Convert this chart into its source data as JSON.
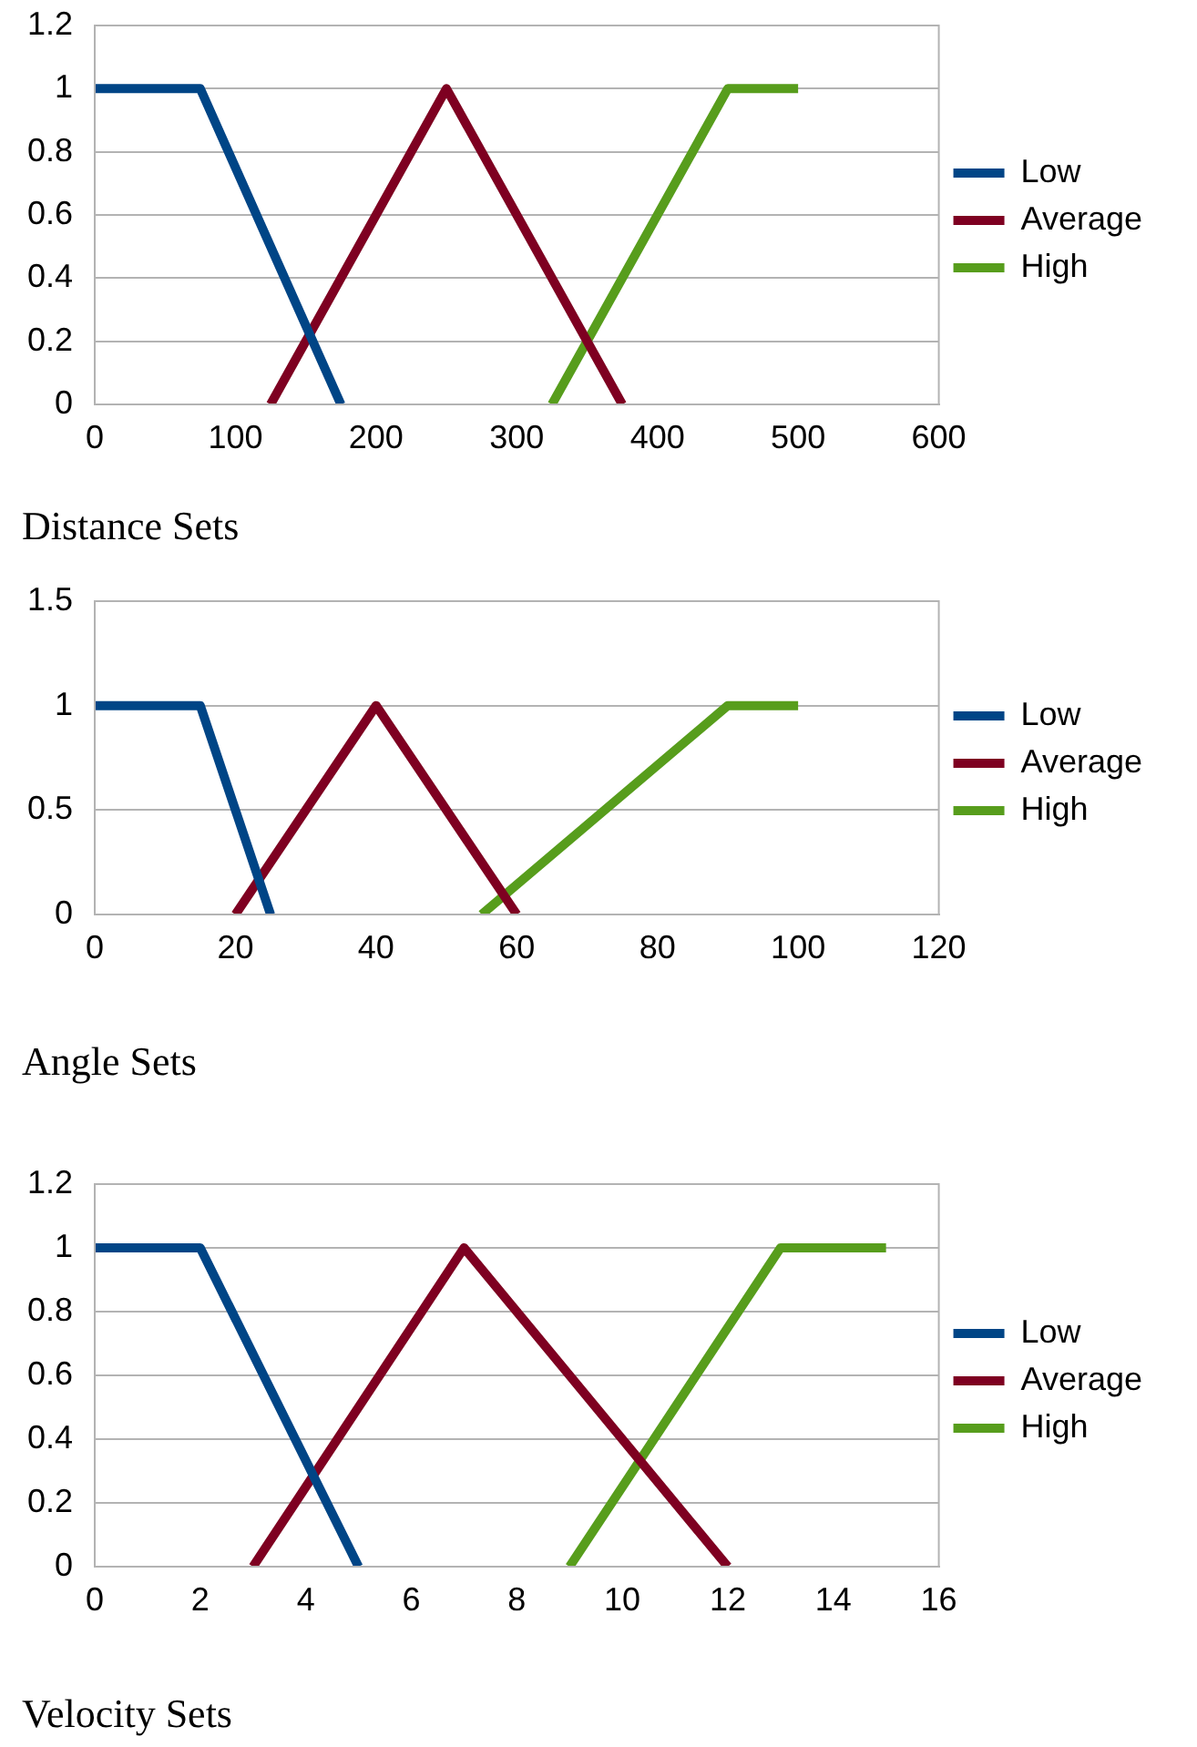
{
  "chart_data": [
    {
      "type": "line",
      "title": "Distance Sets",
      "xlim": [
        0,
        600
      ],
      "xticks": [
        0,
        100,
        200,
        300,
        400,
        500,
        600
      ],
      "ylim": [
        0,
        1.2
      ],
      "yticks": [
        0,
        0.2,
        0.4,
        0.6,
        0.8,
        1,
        1.2
      ],
      "grid": "y",
      "legend": "right",
      "marker": "none",
      "line_style": "solid",
      "series": [
        {
          "name": "Low",
          "color": "#004586",
          "x": [
            0,
            75,
            175
          ],
          "values": [
            1,
            1,
            0
          ]
        },
        {
          "name": "Average",
          "color": "#7e0021",
          "x": [
            125,
            250,
            375
          ],
          "values": [
            0,
            1,
            0
          ]
        },
        {
          "name": "High",
          "color": "#579d1c",
          "x": [
            325,
            450,
            500
          ],
          "values": [
            0,
            1,
            1
          ]
        }
      ]
    },
    {
      "type": "line",
      "title": "Angle Sets",
      "xlim": [
        0,
        120
      ],
      "xticks": [
        0,
        20,
        40,
        60,
        80,
        100,
        120
      ],
      "ylim": [
        0,
        1.5
      ],
      "yticks": [
        0,
        0.5,
        1,
        1.5
      ],
      "grid": "y",
      "legend": "right",
      "marker": "none",
      "line_style": "solid",
      "series": [
        {
          "name": "Low",
          "color": "#004586",
          "x": [
            0,
            15,
            25
          ],
          "values": [
            1,
            1,
            0
          ]
        },
        {
          "name": "Average",
          "color": "#7e0021",
          "x": [
            20,
            40,
            60
          ],
          "values": [
            0,
            1,
            0
          ]
        },
        {
          "name": "High",
          "color": "#579d1c",
          "x": [
            55,
            90,
            100
          ],
          "values": [
            0,
            1,
            1
          ]
        }
      ]
    },
    {
      "type": "line",
      "title": "Velocity Sets",
      "xlim": [
        0,
        16
      ],
      "xticks": [
        0,
        2,
        4,
        6,
        8,
        10,
        12,
        14,
        16
      ],
      "ylim": [
        0,
        1.2
      ],
      "yticks": [
        0,
        0.2,
        0.4,
        0.6,
        0.8,
        1,
        1.2
      ],
      "grid": "y",
      "legend": "right",
      "marker": "none",
      "line_style": "solid",
      "series": [
        {
          "name": "Low",
          "color": "#004586",
          "x": [
            0,
            2,
            5
          ],
          "values": [
            1,
            1,
            0
          ]
        },
        {
          "name": "Average",
          "color": "#7e0021",
          "x": [
            3,
            7,
            12
          ],
          "values": [
            0,
            1,
            0
          ]
        },
        {
          "name": "High",
          "color": "#579d1c",
          "x": [
            9,
            13,
            15
          ],
          "values": [
            0,
            1,
            1
          ]
        }
      ]
    }
  ]
}
